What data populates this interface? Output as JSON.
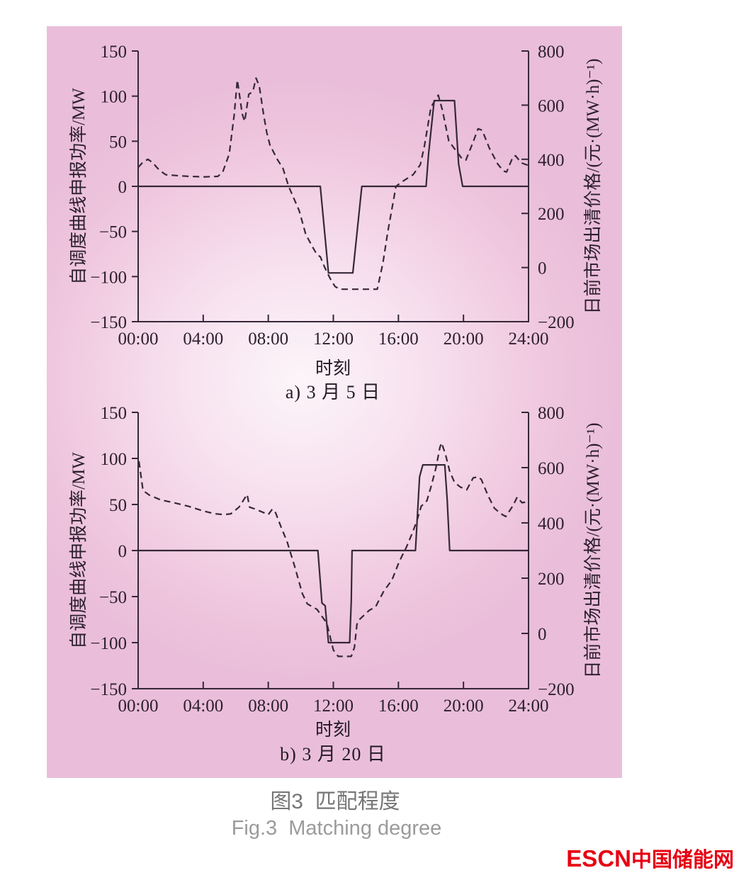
{
  "figure": {
    "caption_cn": "图3  匹配程度",
    "caption_en": "Fig.3  Matching degree"
  },
  "logo": {
    "latin": "ESCN",
    "cn": "中国储能网",
    "color": "#e60012"
  },
  "colors": {
    "line": "#362838",
    "panel_edge": "#eabeda",
    "panel_center": "#fcf5f9",
    "caption_cn_gray": "#767676",
    "caption_en_gray": "#9b9b9b",
    "logo_red": "#e60012"
  },
  "chart_data": [
    {
      "type": "line",
      "subtitle": "a) 3 月 5 日",
      "xlabel": "时刻",
      "ylabel_left": "自调度曲线申报功率/MW",
      "ylabel_right": "日前市场出清价格/(元·(MW·h)⁻¹)",
      "x_range": [
        0,
        24
      ],
      "y_left_range": [
        -150,
        150
      ],
      "y_right_range": [
        -200,
        800
      ],
      "grid": false,
      "legend": "none",
      "x_ticks": [
        {
          "t": 0,
          "label": "00:00"
        },
        {
          "t": 4,
          "label": "04:00"
        },
        {
          "t": 8,
          "label": "08:00"
        },
        {
          "t": 12,
          "label": "12:00"
        },
        {
          "t": 16,
          "label": "16:00"
        },
        {
          "t": 20,
          "label": "20:00"
        },
        {
          "t": 24,
          "label": "24:00"
        }
      ],
      "y_left_ticks": [
        {
          "v": 150,
          "label": "150"
        },
        {
          "v": 100,
          "label": "100"
        },
        {
          "v": 50,
          "label": "50"
        },
        {
          "v": 0,
          "label": "0"
        },
        {
          "v": -50,
          "label": "−50"
        },
        {
          "v": -100,
          "label": "−100"
        },
        {
          "v": -150,
          "label": "−150"
        }
      ],
      "y_right_ticks": [
        {
          "v": 800,
          "label": "800"
        },
        {
          "v": 600,
          "label": "600"
        },
        {
          "v": 400,
          "label": "400"
        },
        {
          "v": 200,
          "label": "200"
        },
        {
          "v": 0,
          "label": "0"
        },
        {
          "v": -200,
          "label": "−200"
        }
      ],
      "series": [
        {
          "name": "self-dispatch-declared-power",
          "axis": "left",
          "style": "solid",
          "unit": "MW",
          "points": [
            [
              0,
              0
            ],
            [
              11.2,
              0
            ],
            [
              11.7,
              -96
            ],
            [
              13.2,
              -96
            ],
            [
              13.75,
              0
            ],
            [
              17.7,
              0
            ],
            [
              17.85,
              35
            ],
            [
              18.2,
              95
            ],
            [
              19.45,
              95
            ],
            [
              19.7,
              25
            ],
            [
              19.95,
              0
            ],
            [
              24,
              0
            ]
          ]
        },
        {
          "name": "day-ahead-clearing-price",
          "axis": "right",
          "style": "dashed",
          "unit": "元/(MW·h)",
          "points": [
            [
              0,
              370
            ],
            [
              0.3,
              390
            ],
            [
              0.6,
              400
            ],
            [
              0.9,
              387
            ],
            [
              1.3,
              360
            ],
            [
              1.7,
              343
            ],
            [
              2.3,
              340
            ],
            [
              3.1,
              337
            ],
            [
              4.1,
              335
            ],
            [
              4.9,
              337
            ],
            [
              5.2,
              353
            ],
            [
              5.6,
              420
            ],
            [
              5.9,
              563
            ],
            [
              6.1,
              693
            ],
            [
              6.4,
              567
            ],
            [
              6.55,
              540
            ],
            [
              6.8,
              640
            ],
            [
              7.05,
              650
            ],
            [
              7.25,
              700
            ],
            [
              7.45,
              670
            ],
            [
              7.7,
              570
            ],
            [
              7.9,
              500
            ],
            [
              8.1,
              453
            ],
            [
              8.55,
              400
            ],
            [
              8.9,
              367
            ],
            [
              9.25,
              300
            ],
            [
              9.9,
              210
            ],
            [
              10.3,
              123
            ],
            [
              10.75,
              73
            ],
            [
              11.0,
              47
            ],
            [
              11.2,
              40
            ],
            [
              11.45,
              3
            ],
            [
              11.8,
              -40
            ],
            [
              12.1,
              -70
            ],
            [
              12.4,
              -80
            ],
            [
              14.7,
              -80
            ],
            [
              15.05,
              17
            ],
            [
              15.35,
              133
            ],
            [
              15.85,
              300
            ],
            [
              16.3,
              320
            ],
            [
              16.9,
              343
            ],
            [
              17.35,
              380
            ],
            [
              17.6,
              450
            ],
            [
              18.0,
              593
            ],
            [
              18.45,
              637
            ],
            [
              18.7,
              583
            ],
            [
              19.1,
              467
            ],
            [
              19.6,
              427
            ],
            [
              19.9,
              403
            ],
            [
              20.15,
              397
            ],
            [
              20.55,
              457
            ],
            [
              20.9,
              513
            ],
            [
              21.15,
              507
            ],
            [
              21.6,
              440
            ],
            [
              22.1,
              383
            ],
            [
              22.45,
              357
            ],
            [
              22.65,
              353
            ],
            [
              23.05,
              410
            ],
            [
              23.2,
              413
            ],
            [
              23.55,
              387
            ],
            [
              24,
              377
            ]
          ]
        }
      ]
    },
    {
      "type": "line",
      "subtitle": "b) 3 月 20 日",
      "xlabel": "时刻",
      "ylabel_left": "自调度曲线申报功率/MW",
      "ylabel_right": "日前市场出清价格/(元·(MW·h)⁻¹)",
      "x_range": [
        0,
        24
      ],
      "y_left_range": [
        -150,
        150
      ],
      "y_right_range": [
        -200,
        800
      ],
      "grid": false,
      "legend": "none",
      "x_ticks": [
        {
          "t": 0,
          "label": "00:00"
        },
        {
          "t": 4,
          "label": "04:00"
        },
        {
          "t": 8,
          "label": "08:00"
        },
        {
          "t": 12,
          "label": "12:00"
        },
        {
          "t": 16,
          "label": "16:00"
        },
        {
          "t": 20,
          "label": "20:00"
        },
        {
          "t": 24,
          "label": "24:00"
        }
      ],
      "y_left_ticks": [
        {
          "v": 150,
          "label": "150"
        },
        {
          "v": 100,
          "label": "100"
        },
        {
          "v": 50,
          "label": "50"
        },
        {
          "v": 0,
          "label": "0"
        },
        {
          "v": -50,
          "label": "−50"
        },
        {
          "v": -100,
          "label": "−100"
        },
        {
          "v": -150,
          "label": "−150"
        }
      ],
      "y_right_ticks": [
        {
          "v": 800,
          "label": "800"
        },
        {
          "v": 600,
          "label": "600"
        },
        {
          "v": 400,
          "label": "400"
        },
        {
          "v": 200,
          "label": "200"
        },
        {
          "v": 0,
          "label": "0"
        },
        {
          "v": -200,
          "label": "−200"
        }
      ],
      "series": [
        {
          "name": "self-dispatch-declared-power",
          "axis": "left",
          "style": "solid",
          "unit": "MW",
          "points": [
            [
              0,
              0
            ],
            [
              11.05,
              0
            ],
            [
              11.3,
              -57
            ],
            [
              11.5,
              -60
            ],
            [
              11.7,
              -100
            ],
            [
              13.0,
              -100
            ],
            [
              13.1,
              -55
            ],
            [
              13.15,
              0
            ],
            [
              17.05,
              0
            ],
            [
              17.3,
              80
            ],
            [
              17.5,
              93
            ],
            [
              18.85,
              93
            ],
            [
              19.0,
              55
            ],
            [
              19.15,
              0
            ],
            [
              24,
              0
            ]
          ]
        },
        {
          "name": "day-ahead-clearing-price",
          "axis": "right",
          "style": "dashed",
          "unit": "元/(MW·h)",
          "points": [
            [
              0.05,
              623
            ],
            [
              0.3,
              517
            ],
            [
              0.7,
              500
            ],
            [
              1.4,
              483
            ],
            [
              2.2,
              473
            ],
            [
              3.1,
              460
            ],
            [
              4,
              443
            ],
            [
              4.7,
              433
            ],
            [
              5.3,
              430
            ],
            [
              5.7,
              433
            ],
            [
              6.2,
              457
            ],
            [
              6.45,
              480
            ],
            [
              6.7,
              503
            ],
            [
              6.85,
              457
            ],
            [
              7.2,
              450
            ],
            [
              7.6,
              440
            ],
            [
              8,
              430
            ],
            [
              8.25,
              450
            ],
            [
              8.45,
              437
            ],
            [
              8.8,
              383
            ],
            [
              9.15,
              333
            ],
            [
              9.6,
              247
            ],
            [
              10.1,
              143
            ],
            [
              10.4,
              107
            ],
            [
              11,
              87
            ],
            [
              11.6,
              37
            ],
            [
              12,
              -60
            ],
            [
              12.3,
              -83
            ],
            [
              13.1,
              -83
            ],
            [
              13.3,
              -50
            ],
            [
              13.45,
              33
            ],
            [
              13.6,
              50
            ],
            [
              14.2,
              83
            ],
            [
              14.6,
              97
            ],
            [
              15.1,
              153
            ],
            [
              15.6,
              193
            ],
            [
              16.05,
              260
            ],
            [
              16.5,
              313
            ],
            [
              16.9,
              370
            ],
            [
              17.15,
              410
            ],
            [
              17.4,
              460
            ],
            [
              17.75,
              480
            ],
            [
              18,
              530
            ],
            [
              18.3,
              597
            ],
            [
              18.55,
              673
            ],
            [
              18.65,
              690
            ],
            [
              18.9,
              647
            ],
            [
              19.15,
              587
            ],
            [
              19.45,
              547
            ],
            [
              19.8,
              530
            ],
            [
              20.2,
              520
            ],
            [
              20.6,
              563
            ],
            [
              20.9,
              567
            ],
            [
              21.1,
              557
            ],
            [
              21.5,
              500
            ],
            [
              21.9,
              453
            ],
            [
              22.3,
              433
            ],
            [
              22.6,
              423
            ],
            [
              23.05,
              463
            ],
            [
              23.3,
              493
            ],
            [
              23.6,
              473
            ],
            [
              24,
              477
            ]
          ]
        }
      ]
    }
  ]
}
